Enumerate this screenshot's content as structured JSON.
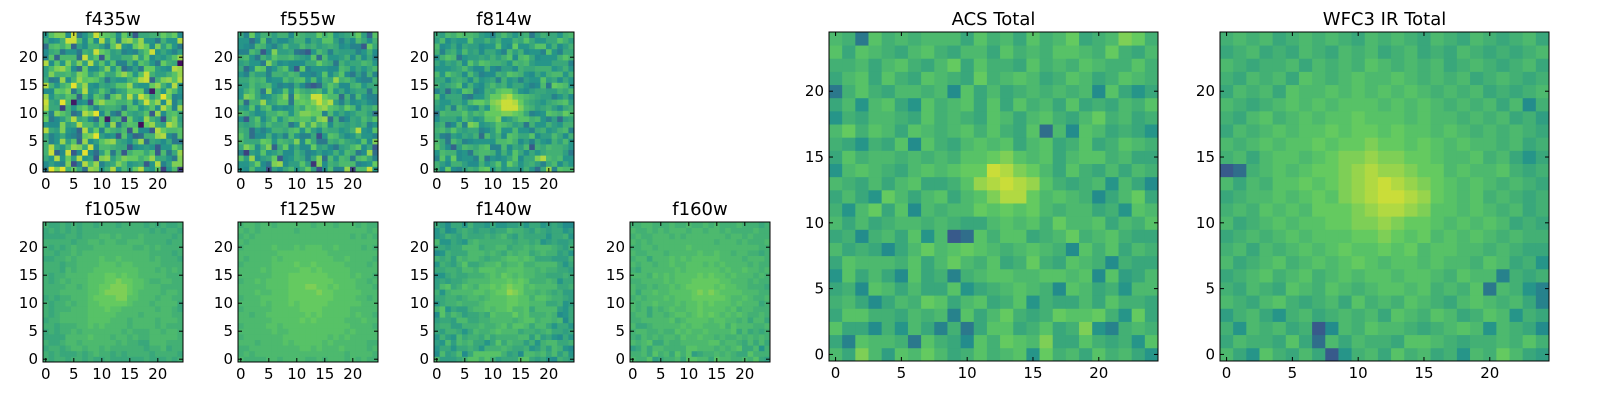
{
  "chart_data": {
    "type": "heatmap",
    "colormap": "viridis",
    "colorscale": [
      "#440154",
      "#3b528b",
      "#21918c",
      "#5ec962",
      "#fde725"
    ],
    "panels": [
      {
        "title": "f435w",
        "size": 25,
        "xlim": [
          0,
          24
        ],
        "ylim": [
          0,
          24
        ],
        "xticks": [
          0,
          5,
          10,
          15,
          20
        ],
        "yticks": [
          0,
          5,
          10,
          15,
          20
        ],
        "values": [
          "KYUYQTPJVUNQWNROTWONSFNRF",
          "MOMLUGLWRVLOPURNOPHNWLOUU",
          "PNWNTOWNOHUVORUTTQSVPPNKU",
          "QXIMXHMYMJOTKQHQSSPSHRKPV",
          "QWPNRVUPXMRRQPPHMNONHNNTQ",
          "QLNVOSIVMOSUVPOMQVJPOMPKK",
          "PLNPMLJTUYOMNHSMIJQQVWMKS",
          "WPOUNMIWOTLSQPRHTMMHWTRRS",
          "NMMUOPWRROSMVKQSRBTVPOWUP",
          "TKMORWPQMJSCQRGTONVQOGRUO",
          "RLUSQJLWUYMRLJSPOPSHVMRSP",
          "WPPFQNRTPLPQQPKRSNPSMWSLV",
          "XPOYRCMNGTVSSQQSMQXSVMWLP",
          "VNQPSRIRMSQKSUPWPXUORYTLM",
          "MMTSUKPWNOSPLOPTTTLCRNURN",
          "WQNQSYRVNMPOPSSVONNTVQNWN",
          "PKLVMQVSTSPKONNQSWXIQUVSW",
          "OUQQRPUTOQTPPTVSNSXQOOQSV",
          "ORUVSMJTMMPUNSJLOKTTONMWV",
          "WMSNUPUOWOSNSLLQMSQNKTQPB",
          "LSIRRRJXPSHSOOQQUOTMONPSV",
          "MPQKNNKQPXTROPLMLPSXNPNLO",
          "JRSQTIOMQQOLSWNMTVTMUOSNK",
          "PMNQXXRMSMWOTLUVRVNNKQNNW",
          "NSUUMXKNQXTSRMTPHPPQQTRTM"
        ]
      },
      {
        "title": "f555w",
        "size": 25,
        "xlim": [
          0,
          24
        ],
        "ylim": [
          0,
          24
        ],
        "xticks": [
          0,
          5,
          10,
          15,
          20
        ],
        "yticks": [
          0,
          5,
          10,
          15,
          20
        ],
        "values": [
          "NMRNNGOMPRNPTOGMRLLVFRRXN",
          "NNPTMKUVMOOSOEUMQPRRRLMNT",
          "SOVMOPTHMNQPLPUJRNRQKRSPL",
          "LFONSNOQMMQOLMOMNQNRQKMVJ",
          "PUSMQUIPTMPMMTOPMKOPRTMPH",
          "RPPPTSNRQPUMTPKKQPRPONSMU",
          "SPJMMQMOLRNLLPGNSROMNQNNL",
          "QPJNLNQQPRSNSOMQPPNOQWNMS",
          "POPRORPPQKNUPUQSMQPOPOQLN",
          "MHPSMPSNQSRSSPUVJQKMPORPS",
          "RQOMNQQSRNRUUTTLRNPNOQQOJ",
          "ONSMQSMNMNRPTSUVSRPTRMQPR",
          "RJQQVOPSSKSTSUXUWOLPMNOML",
          "NUTPMNPRUKUSRXXTRRJQLRNLL",
          "NQSPKUMNSMSQPQRNSNPMOPPKQ",
          "OORPQRNLMLPMJHJPSQMMQRNPP",
          "PPRQRMNNRPRSNRMQPVQRPMLLQ",
          "NLQOOLQQPRQMMLNSMPSMKOLQL",
          "PJMTSLNQSMHTLNNNMMRQNPNPR",
          "OPNNKUPMNMMMPPTQPKQOPPRQN",
          "QRNKQOSQQRPONSJRNNOQMQMPL",
          "LLRPHMUOOPKJHNRPLPOOOLNQM",
          "NMLRQNLOROORPQOPQPMNLLHTP",
          "NNJMSLOMMOQQMPOSSOLOMRPMQ",
          "PLTNQQOQQMRQPPTQSNOPQTOIS"
        ]
      },
      {
        "title": "f814w",
        "size": 25,
        "xlim": [
          0,
          24
        ],
        "ylim": [
          0,
          24
        ],
        "xticks": [
          0,
          5,
          10,
          15,
          20
        ],
        "yticks": [
          0,
          5,
          10,
          15,
          20
        ],
        "values": [
          "QMTMLOQPSTNQNOONQNJPVLSRR",
          "QOMQQOMMQNPSNTQNPQOLPRMPN",
          "LSNTMNNLRKNMNPSMPPUWRQRNN",
          "NRQQMNKQRRQMQNSPMPNPQQQOK",
          "SPMIORQPRSLLRMPORHQPRQQPN",
          "RPKRPLMNNNNRRSQMOLPNMQORN",
          "PLKONPOQJROQMSRPPSMOORPMQ",
          "QRPSPOPPLMOSNNRNNLPQNOQRL",
          "PQKMRLUTNOPSRQOPKQNNQONQQ",
          "MPPPNRPNOSSUNOQSSQRNLOJOP",
          "KRQQQSPRQTTTUUTSPLMNSRQTR",
          "ONQLRPNMQNTUXXXURQOPQOMPQ",
          "PNNPPNRTTRUVXXWTQPONPQRSO",
          "SMPPPLKNNQTTVWTSRQPOOLNPM",
          "LOJONSRLMQPSTTQNMOPPOOQPR",
          "QOPQSMQNMPRPQNPPNLMRKTSRN",
          "PPMPQPMQNOPLQNOLONNSOPMPN",
          "RNSQPMROLMMQPSRQNMPNQRRNQ",
          "NNNOPROMMQMLOOMQPPQQQNOQN",
          "PNPOQMSPSRQQPNRQRONNNPPPL",
          "MQSRKNOOPOQOQSMRSPMNNNQSQ",
          "QLPQNROPMPPNLROQMNNLSNLPP",
          "RMNPMPOOMNNSNMTNNPSSNQMOQ",
          "ORMONNSOOQOQNNQPSPNNPPSQO",
          "PORQSRRQONLPRPNPQKOQPPNQR"
        ]
      },
      {
        "title": "f105w",
        "size": 25,
        "xlim": [
          0,
          24
        ],
        "ylim": [
          0,
          24
        ],
        "xticks": [
          0,
          5,
          10,
          15,
          20
        ],
        "yticks": [
          0,
          5,
          10,
          15,
          20
        ],
        "values": [
          "QPQQPQQPQPPQPPPPPPQPPPQPQ",
          "QPQPPPQPQRQQPQPQQQQPQQQQP",
          "PQQPQRRQRRQRQQQQQQPQQRPQQ",
          "QPPQRRQRRRRRRQRQQPPRRRQQQ",
          "PPPPRRRRSRRRQRRQRQQRRRRRQ",
          "PQPQQRQRRRRRRRQRQQQRRQRRQ",
          "QQPQQQRRSRSRRRRQRRRRQRQQQ",
          "PQQRRRRRSSSSRRRQRRRRQRRRQ",
          "QPQRRRRRSSSSSRRRRQRRRRRQQ",
          "QPQQQRRRSSSTSSRRRRRRQRRQP",
          "QPQQRQRRSSTTTTTSRRRQRRRRP",
          "PQPQQRRRSTTTTUUSSRRRQRRQQ",
          "QQQRRRRRSSTUUUUTSRRRRQRRQ",
          "QQQQRRQRSSTTUUUTSSRRRQQQQ",
          "QPQRQRRRSSSTTUTTSSRQQRRQQ",
          "QPQQRRRRSSSTTSTSSRRRRRQQQ",
          "QQQPRQRRRSSSSSSSSRRRQRQRQ",
          "QQQPQQRRRRSSSRSSRRRRRQQQQ",
          "PPQQRQRRRRSRRSRRRRRQRQQQP",
          "QQPQQRQRRRRRRRRRRRRQQQQPQ",
          "QPQPQRQQQRRRRRRRQQRQRQQQQ",
          "QQQQQPQQRRQRRQQRRRQQQQPQQ",
          "PPPPQQPQQQRRQRQQQRQQQQQPQ",
          "PQPQPQPQQQQQQQQQQQQPQPQQP",
          "QPPQPQPQQPQQQPQQQQPQPQPPQ"
        ]
      },
      {
        "title": "f125w",
        "size": 25,
        "xlim": [
          0,
          24
        ],
        "ylim": [
          0,
          24
        ],
        "xticks": [
          0,
          5,
          10,
          15,
          20
        ],
        "yticks": [
          0,
          5,
          10,
          15,
          20
        ],
        "values": [
          "RQQQQRRQRRRRQQRQRRRQRQRQQ",
          "QRQRRRRRRRRRRRRRRRRQRRRRQ",
          "QQRRRRRRRRRSSRSRRRSRRRRQR",
          "RRRQRRRRSRSSSSSRSRRRRRRQQ",
          "QRRRRRRRSSSSSSSSRSRSRRRRR",
          "RRRRRRSRRSSSSSSSSSSRSRRRR",
          "QRRRRSSRSSSSSSSSSSSSRRRRQ",
          "RRRRRRSSSSSTSTSSSSSRRRSRR",
          "RRQRRSSSSSSSTSTSSSSSRSRRQ",
          "QRRRRRSSSSSTTTTSSSSSRRRRR",
          "RRRRSRSSSTSTTTTTSSSSSSRRR",
          "QRRRSSSSSTTTTTTTTSSSSRRQR",
          "RRRSRRSSSTTTTTUTTSSSSSRRR",
          "RRRRRSSSSTTTUUTTSTSSSRRRQ",
          "QRRSRSSSSTTTTTTTTSSSSRRQR",
          "RRRRRRSSSTTTTTTTSSSSRSRRQ",
          "RRRRSRSSSSSTTSTSSSSSRRRRR",
          "QRRRRRSSSSTSSTSSSSSRRRRQR",
          "RQRRRRSRSSSSSSSSSRRSRRRRQ",
          "RRRRRRRSSSSSSSSSRRRRRRRRR",
          "QRRRRRSRRRSRSSSRRSRRRRQRQ",
          "RQRRRRRRRRRRRRRRRRRRRRRRR",
          "QRQRRRRRRRRRRRRRRRRRQRQRQ",
          "RQRQRRRRRRQRRRRRRRRRRRRQR",
          "QRRQRRQRRRRRRQRRRQRRRQRQQ"
        ]
      },
      {
        "title": "f140w",
        "size": 25,
        "xlim": [
          0,
          24
        ],
        "ylim": [
          0,
          24
        ],
        "xticks": [
          0,
          5,
          10,
          15,
          20
        ],
        "yticks": [
          0,
          5,
          10,
          15,
          20
        ],
        "values": [
          "ROOOPQSSQSQOPPPSSPOPNMQPO",
          "MROPRMPSSSSSQOPMRRQRPROQN",
          "NPPNPPQPNQQQRQPPQNOQORQNM",
          "ONRORQRPPNPSPRQQOQNQRRPPQ",
          "NQONRPQQPRPQQQQRROROPNMPN",
          "POQQPNPRQQRSRRRPQQPQRPPOP",
          "PQQOOQQQRQQRSQSSRPRRPNPPN",
          "OPPORRPPQQRRRRQRSSQRRQRMP",
          "MSPRQOPPQPSRRRTRSQQQRQMNP",
          "QSNPOOQRRSRSSTRRSPRRRRONP",
          "NPQQRQQQRSSSSTTSSRRRPPQNO",
          "PPQQPQRRQRSSSTTSSQSSRQQPO",
          "QNQRRRRSSRSTTVUTRRQRQPQOO",
          "ORSPQSRQSSTSTUTTRSRRRRPPQ",
          "OPOPPQRRRRSSSTSTSQQQRQNPP",
          "NNPQPPQQQRSRTSRSRRQQPPPQP",
          "PPQQPRRQSSSRRSSSRRQRQQPPO",
          "NQPOQSPPQRRSQRRSQQRRRRPNP",
          "QPQORQRRQPQQRSSRSRPPPOOOQ",
          "MNQPPPRRRQRQPRQRRPQRQQOPN",
          "PPOPPRRRPQQRRPQQRQRRRQPOQ",
          "RNNPONQRQQQQQQPQQPQNOPOOP",
          "NOQPOQPPPQPQRPOQPPPPNPPQN",
          "NPMNPQPOPPOPPRQQPOQPOPPNO",
          "POMPPNQOONPNNOOPNPPNOPOMM"
        ]
      },
      {
        "title": "f160w",
        "size": 25,
        "xlim": [
          0,
          24
        ],
        "ylim": [
          0,
          24
        ],
        "xticks": [
          0,
          5,
          10,
          15,
          20
        ],
        "yticks": [
          0,
          5,
          10,
          15,
          20
        ],
        "values": [
          "RQQSOPQQRPSSRRPSRRQQRQSPO",
          "QQRPSQRPSQSOPQQRQRQPPSQQQ",
          "OPRPRRQQQQSSRRRQRQRSPPRNQ",
          "RQRSPPRQQRRRRRSSQRRQPRPRP",
          "QPRQRQRRQSRRSRRQRQQRQRQRQ",
          "QRRQQRQQSRSRRSRRRRSPRPQPQ",
          "RPPQRRRRRSRSSRRRSQSRRRQQR",
          "QQRRRRRSQRSSSSRSSRRQRPRRP",
          "QRRPRRQRSSRSTSTSRSRSRQQRQ",
          "RQRPRQRSRRSSTSSSSRSQRRQQQ",
          "RQRRSRRRSRSSTSTSSSRSRRRPQ",
          "QRQRRRSRSSSTTTTTTSRRSRQQR",
          "RPRRSRRSSSSTUTUTSSSSRRRQQ",
          "RQQRQRRSRSTTTTTSTSSRRQQQP",
          "QQRRRRSRSSSTTTTTSSRRRQRQQ",
          "RRRQSRSRSSSSTSTSSRSRRRQRQ",
          "QPRRRRRRSRSSSSSSRSRRSRRQR",
          "RQRRQRRSRRSSSRSRSRRRRQRQQ",
          "QRRPRRRSRSRSSSSSRRRRQRRRQ",
          "RQQRRRQRRRRRSRRSRRQRRQQPQ",
          "QQRRQRRRRRSRRRRRRRRRRRRQQ",
          "RQRQRRRRRRRRRRRQRRRQRQQQR",
          "QRQQRRRQRQRRRRRRRQRRQRQQQ",
          "RQQRQRQRRRQRRQRRQRQQQQRQQ",
          "QQRRQQQRQQRQQRQRQQQRQQQPQ"
        ]
      },
      {
        "title": "ACS Total",
        "size": 25,
        "xlim": [
          0,
          24
        ],
        "ylim": [
          0,
          24
        ],
        "xticks": [
          0,
          5,
          10,
          15,
          20
        ],
        "yticks": [
          0,
          5,
          10,
          15,
          20
        ],
        "values": [
          "RPUROSRTRPQSQRSNTQRPSQRPN",
          "PLSRRQKSQPMSQTSRUPPSQPQNS",
          "SPPMQNRPLQKPSSPQSPQUNLQRQ",
          "PSSQQPRQRLSPRTQPQTSSTQNTP",
          "QRPMPRQTSPRSPQSNQPPRPSQQP",
          "PQMSRPRPPSNPQRSRQMSRPQNRR",
          "NSPRPMSPQLQRSSRRSSRSMSOPR",
          "PSRRRQSPRTRQSPQTQPSRQMQPP",
          "RPQPMPRTRSTSRQRSRQMSQSPRQ",
          "PQMQRPSNRHJSQSSPQRTQRSQPP",
          "RPRPQRRQRQPPRSRSQTRRSPRQS",
          "QNRTPSMRQRRTSTSTRQRRPQNSR",
          "PRPNTRPRSPRSUWWTRSRQMPRTP",
          "RQPRPRSPPQSVWXWVSQPQRNRPM",
          "NRSRQPRSRSTTXWUTRPSQPRPRQ",
          "PSQRRQRQRQSSTUSRSPRSSQRPP",
          "QPNQPSMSQPRSRSPRSPQSPQSRQ",
          "RTQSRPSRQRSQSQPSJRMSRPQPN",
          "NQPRRQPSQRQPSRPRSQPRTQRPQ",
          "PRNRSPNSQRSPSPSQRPSPQPRQS",
          "KQSQPRRQRMSPRPQRQRQRMSPNP",
          "PRSPSQPSRQPTQRSRPQSRPQSRQ",
          "QQRPRSQPRTPSQQPSQRQSRQQSQ",
          "SPSRQPRSQPRRPSQRQSSRQTQPR",
          "RQKSQRQRRRPSQRPSQRTPQRUTQ"
        ]
      },
      {
        "title": "WFC3 IR Total",
        "size": 25,
        "xlim": [
          0,
          24
        ],
        "ylim": [
          0,
          24
        ],
        "xticks": [
          0,
          5,
          10,
          15,
          20
        ],
        "yticks": [
          0,
          5,
          10,
          15,
          20
        ],
        "values": [
          "RPNSQPRPHNQRPSQRPQNRQTRPO",
          "PRQQPSPJRPRQQPSSRQPQQRQSQ",
          "QNRQRPQHMRQSRRQPQRSRNRQPM",
          "OQRPNQRPQRQRPSRQSRPQSRNQP",
          "RQPRSQPQRPSQRQSRQPRSRQRPL",
          "QPRQPSRQSRQRSSRSQRQSKRQNL",
          "PQRSQRSQRSRSSRSSRQSRRLQPQ",
          "RPQRSQRSRSTSRSSRSRRQSRPQN",
          "QRPRQRSRSTSSTSTRSSRRQRQPP",
          "PQRQRSRSSSTTUTSTRSRSRQRQQ",
          "RPQRSRSSTTUUVUTTSRSRSRPQP",
          "QRQSRSRTTTUVWWVUSSRSRQRPQ",
          "PQRRSRSTSUVWXXWVTSRSQRQPQ",
          "RPRQSSTSTUVWXWVUTSRSRQRQP",
          "HJQRSRSTTUVWVVUTTRSRRSQPQ",
          "QRPRSSRSTUUVUUTTSRRSQRPNP",
          "RQRSRSSTSTTUTTSTSRSRRQRPQ",
          "PRQRSRSSTSTTSTSSRSRQRQRQP",
          "QPRSQRSRSSTSSSRSRRQRQRPQO",
          "RQPQRSRSRSSSRSRSRQRQRPRMQ",
          "PRQRPSRRSRSRSRSRQRQRPQPQR",
          "QPRQRPSRQRSRRSRQRQRPQRQPQ",
          "RQPQQRPRQRQSRQRQRPQRQPQRP",
          "PQRPQPRQPRQRPQRPQPRQPQPQR",
          "QRQRPQRQRQPRQRQPRQPRQPQRP"
        ]
      }
    ]
  }
}
